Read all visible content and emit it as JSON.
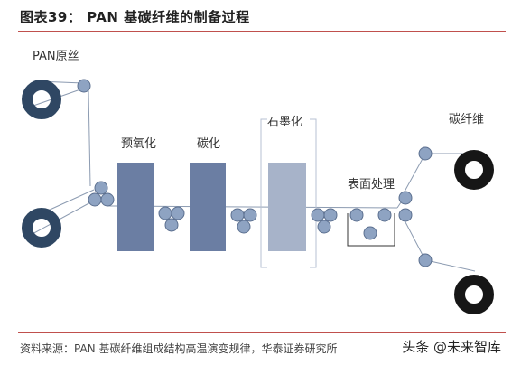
{
  "title": "图表39：  PAN 基碳纤维的制备过程",
  "labels": {
    "precursor": "PAN原丝",
    "pre_oxidation": "预氧化",
    "carbonization": "碳化",
    "graphitization": "石墨化",
    "surface_treatment": "表面处理",
    "carbon_fiber": "碳纤维"
  },
  "source": "资料来源：PAN 基碳纤维组成结构高温演变规律，华泰证券研究所",
  "watermark": "头条 @未来智库",
  "colors": {
    "accent_rule": "#c0504d",
    "spool_precursor": "#2f4763",
    "spool_product": "#161616",
    "roller": "#8ea3c2",
    "furnace_oxidation": "#6b7ea3",
    "furnace_carbonization": "#6b7ea3",
    "furnace_graphitization": "#a7b3c9",
    "fiber_line": "#8c9bb1"
  }
}
